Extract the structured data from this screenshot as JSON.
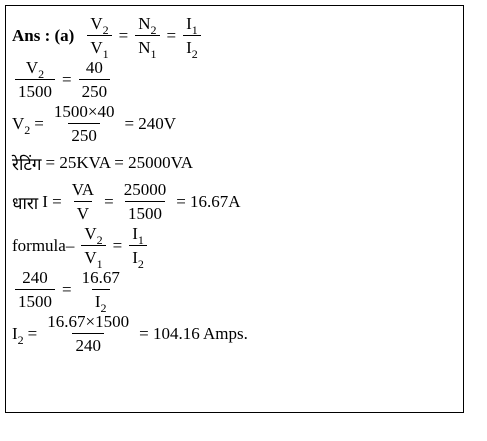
{
  "lines": [
    [
      {
        "bold": "Ans : (a)"
      },
      {
        "num": [
          {
            "base": "V",
            "sub": "2"
          }
        ],
        "den": [
          {
            "base": "V",
            "sub": "1"
          }
        ]
      },
      "=",
      {
        "num": [
          {
            "base": "N",
            "sub": "2"
          }
        ],
        "den": [
          {
            "base": "N",
            "sub": "1"
          }
        ]
      },
      "=",
      {
        "num": [
          {
            "base": "I",
            "sub": "1"
          }
        ],
        "den": [
          {
            "base": "I",
            "sub": "2"
          }
        ]
      }
    ],
    [
      {
        "num": [
          {
            "base": "V",
            "sub": "2"
          }
        ],
        "den": [
          "1500"
        ]
      },
      "=",
      {
        "num": [
          "40"
        ],
        "den": [
          "250"
        ]
      }
    ],
    [
      {
        "base": "V",
        "sub": "2"
      },
      "=",
      {
        "num": [
          "1500×40"
        ],
        "den": [
          "250"
        ]
      },
      "= 240V"
    ],
    [
      "रेटिंग",
      "= 25KVA = 25000VA"
    ],
    [
      "धारा",
      "I =",
      {
        "num": [
          "VA"
        ],
        "den": [
          "V"
        ]
      },
      "=",
      {
        "num": [
          "25000"
        ],
        "den": [
          "1500"
        ]
      },
      "= 16.67A"
    ],
    [
      "formula–",
      {
        "num": [
          {
            "base": "V",
            "sub": "2"
          }
        ],
        "den": [
          {
            "base": "V",
            "sub": "1"
          }
        ]
      },
      "=",
      {
        "num": [
          {
            "base": "I",
            "sub": "1"
          }
        ],
        "den": [
          {
            "base": "I",
            "sub": "2"
          }
        ]
      }
    ],
    [
      {
        "num": [
          "240"
        ],
        "den": [
          "1500"
        ]
      },
      "=",
      {
        "num": [
          "16.67"
        ],
        "den": [
          {
            "base": "I",
            "sub": "2"
          }
        ]
      }
    ],
    [
      {
        "base": "I",
        "sub": "2"
      },
      "=",
      {
        "num": [
          "16.67×1500"
        ],
        "den": [
          "240"
        ]
      },
      "= 104.16 Amps."
    ]
  ]
}
